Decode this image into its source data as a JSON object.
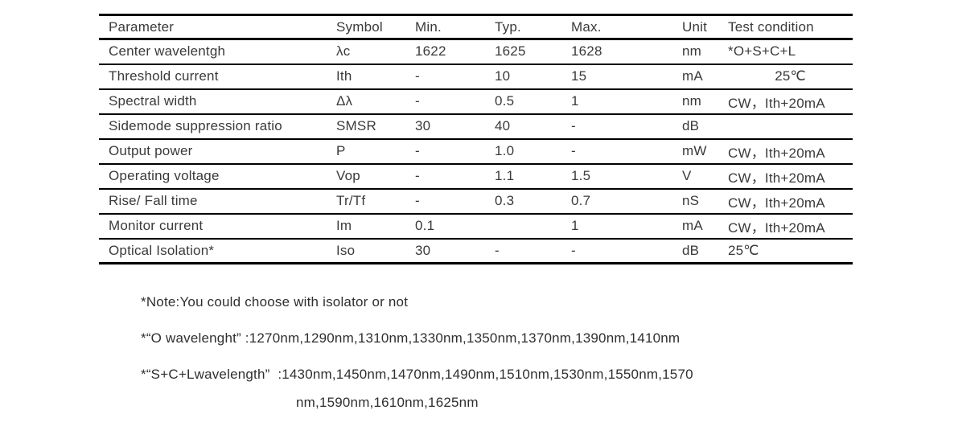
{
  "colors": {
    "text": "#3a3a3a",
    "rule": "#000000",
    "background": "#ffffff"
  },
  "table": {
    "headers": [
      "Parameter",
      "Symbol",
      "Min.",
      "Typ.",
      "Max.",
      "Unit",
      "Test condition"
    ],
    "rows": [
      {
        "parameter": "Center wavelentgh",
        "symbol": "λc",
        "min": "1622",
        "typ": "1625",
        "max": "1628",
        "unit": "nm",
        "test": "*O+S+C+L"
      },
      {
        "parameter": "Threshold current",
        "symbol": "Ith",
        "min": "-",
        "typ": "10",
        "max": "15",
        "unit": "mA",
        "test": "25℃"
      },
      {
        "parameter": "Spectral width",
        "symbol": "Δλ",
        "min": "-",
        "typ": "0.5",
        "max": "1",
        "unit": "nm",
        "test": "CW，Ith+20mA"
      },
      {
        "parameter": "Sidemode suppression ratio",
        "symbol": "SMSR",
        "min": "30",
        "typ": "40",
        "max": "-",
        "unit": "dB",
        "test": ""
      },
      {
        "parameter": "Output power",
        "symbol": "P",
        "min": "-",
        "typ": "1.0",
        "max": "-",
        "unit": "mW",
        "test": "CW，Ith+20mA"
      },
      {
        "parameter": "Operating voltage",
        "symbol": "Vop",
        "min": "-",
        "typ": "1.1",
        "max": "1.5",
        "unit": "V",
        "test": "CW，Ith+20mA"
      },
      {
        "parameter": "Rise/ Fall time",
        "symbol": "Tr/Tf",
        "min": "-",
        "typ": "0.3",
        "max": "0.7",
        "unit": "nS",
        "test": "CW，Ith+20mA"
      },
      {
        "parameter": "Monitor current",
        "symbol": "Im",
        "min": "0.1",
        "typ": "",
        "max": "1",
        "unit": "mA",
        "test": "CW，Ith+20mA"
      },
      {
        "parameter": "Optical Isolation*",
        "symbol": "Iso",
        "min": "30",
        "typ": "-",
        "max": "-",
        "unit": "dB",
        "test": "25℃"
      }
    ]
  },
  "notes": {
    "note1": "*Note:You could choose with isolator or not",
    "note2": "*“O wavelenght” :1270nm,1290nm,1310nm,1330nm,1350nm,1370nm,1390nm,1410nm",
    "note3_line1": "*“S+C+Lwavelength”  :1430nm,1450nm,1470nm,1490nm,1510nm,1530nm,1550nm,1570",
    "note3_line2": "nm,1590nm,1610nm,1625nm"
  }
}
